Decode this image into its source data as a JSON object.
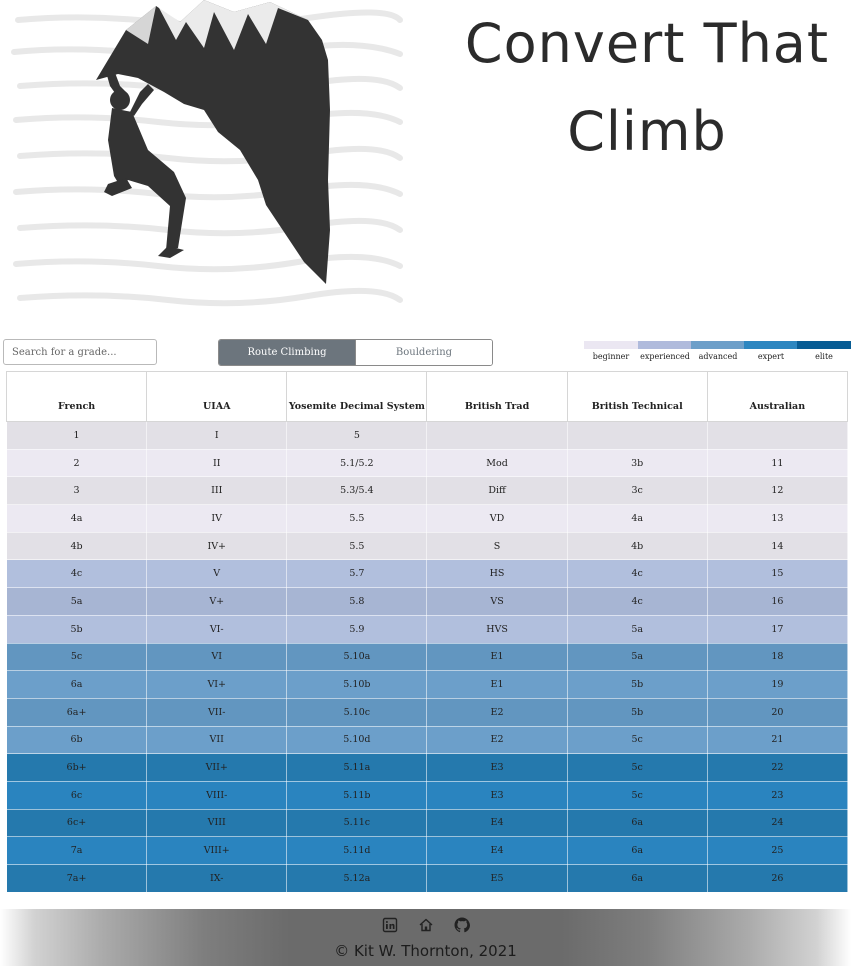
{
  "app": {
    "title": "Convert That Climb"
  },
  "search": {
    "placeholder": "Search for a grade..."
  },
  "toggle": {
    "options": [
      "Route Climbing",
      "Bouldering"
    ],
    "active": "Route Climbing"
  },
  "legend": [
    {
      "label": "beginner",
      "color": "#ebe7f2"
    },
    {
      "label": "experienced",
      "color": "#b0bbdc"
    },
    {
      "label": "advanced",
      "color": "#6d9fc9"
    },
    {
      "label": "expert",
      "color": "#2c86c0"
    },
    {
      "label": "elite",
      "color": "#075c94"
    }
  ],
  "table": {
    "headers": [
      "French",
      "UIAA",
      "Yosemite Decimal System",
      "British Trad",
      "British Technical",
      "Australian"
    ],
    "rows": [
      {
        "cells": [
          "1",
          "I",
          "5",
          "",
          "",
          ""
        ],
        "color": "#e2e0e6"
      },
      {
        "cells": [
          "2",
          "II",
          "5.1/5.2",
          "Mod",
          "3b",
          "11"
        ],
        "color": "#ece9f2"
      },
      {
        "cells": [
          "3",
          "III",
          "5.3/5.4",
          "Diff",
          "3c",
          "12"
        ],
        "color": "#e2e0e6"
      },
      {
        "cells": [
          "4a",
          "IV",
          "5.5",
          "VD",
          "4a",
          "13"
        ],
        "color": "#ece9f2"
      },
      {
        "cells": [
          "4b",
          "IV+",
          "5.5",
          "S",
          "4b",
          "14"
        ],
        "color": "#e2e0e6"
      },
      {
        "cells": [
          "4c",
          "V",
          "5.7",
          "HS",
          "4c",
          "15"
        ],
        "color": "#b1bfdd"
      },
      {
        "cells": [
          "5a",
          "V+",
          "5.8",
          "VS",
          "4c",
          "16"
        ],
        "color": "#a7b5d3"
      },
      {
        "cells": [
          "5b",
          "VI-",
          "5.9",
          "HVS",
          "5a",
          "17"
        ],
        "color": "#b1bfdd"
      },
      {
        "cells": [
          "5c",
          "VI",
          "5.10a",
          "E1",
          "5a",
          "18"
        ],
        "color": "#6296c0"
      },
      {
        "cells": [
          "6a",
          "VI+",
          "5.10b",
          "E1",
          "5b",
          "19"
        ],
        "color": "#6c9fca"
      },
      {
        "cells": [
          "6a+",
          "VII-",
          "5.10c",
          "E2",
          "5b",
          "20"
        ],
        "color": "#6296c0"
      },
      {
        "cells": [
          "6b",
          "VII",
          "5.10d",
          "E2",
          "5c",
          "21"
        ],
        "color": "#6c9fca"
      },
      {
        "cells": [
          "6b+",
          "VII+",
          "5.11a",
          "E3",
          "5c",
          "22"
        ],
        "color": "#2579ad"
      },
      {
        "cells": [
          "6c",
          "VIII-",
          "5.11b",
          "E3",
          "5c",
          "23"
        ],
        "color": "#2a84bf"
      },
      {
        "cells": [
          "6c+",
          "VIII",
          "5.11c",
          "E4",
          "6a",
          "24"
        ],
        "color": "#2579ad"
      },
      {
        "cells": [
          "7a",
          "VIII+",
          "5.11d",
          "E4",
          "6a",
          "25"
        ],
        "color": "#2a84bf"
      },
      {
        "cells": [
          "7a+",
          "IX-",
          "5.12a",
          "E5",
          "6a",
          "26"
        ],
        "color": "#2579ad"
      }
    ]
  },
  "footer": {
    "icons": [
      "linkedin-icon",
      "home-icon",
      "github-icon"
    ],
    "copyright": "© Kit W. Thornton, 2021"
  }
}
